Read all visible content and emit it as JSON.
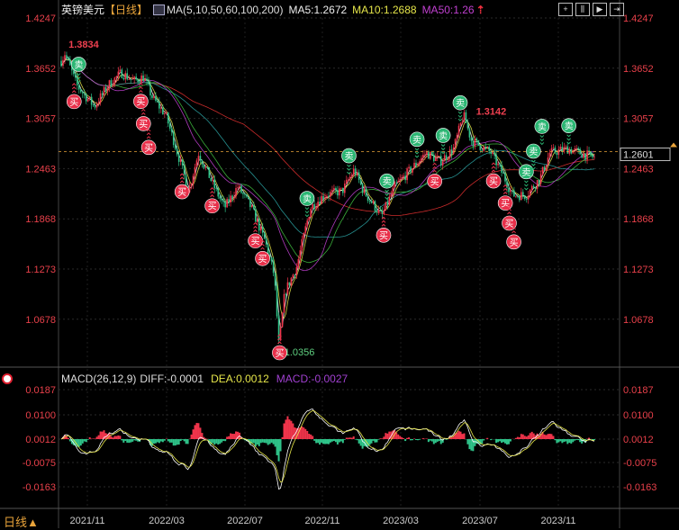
{
  "header": {
    "symbol": "英镑美元",
    "period": "【日线】",
    "ma_label": "MA(5,10,50,60,100,200)",
    "ma5": "MA5:1.2672",
    "ma10": "MA10:1.2688",
    "ma50": "MA50:1.26"
  },
  "toolbar": {
    "icons": [
      "crosshair-icon",
      "zoom-in-icon",
      "play-icon",
      "end-icon"
    ]
  },
  "macd_header": {
    "label": "MACD(26,12,9)",
    "diff": "DIFF:-0.0001",
    "dea": "DEA:0.0012",
    "macd": "MACD:-0.0027"
  },
  "footer": {
    "period_label": "日线▲"
  },
  "colors": {
    "up": "#f0344b",
    "down": "#2fc48a",
    "ma5": "#ffffff",
    "ma10": "#e6e64a",
    "ma50": "#c040d0",
    "ma60": "#40c040",
    "ma100": "#2aa0a0",
    "ma200": "#e03030",
    "axis": "#e8404a"
  },
  "chart_data": {
    "type": "candlestick",
    "price_axis": {
      "ticks": [
        "1.4247",
        "1.3652",
        "1.3057",
        "1.2463",
        "1.1868",
        "1.1273",
        "1.0678"
      ],
      "range": [
        1.0678,
        1.4247
      ]
    },
    "macd_axis": {
      "ticks": [
        "0.0187",
        "0.0100",
        "0.0012",
        "-0.0075",
        "-0.0163"
      ]
    },
    "date_ticks": [
      "2021/11",
      "2022/03",
      "2022/07",
      "2022/11",
      "2023/03",
      "2023/07",
      "2023/11"
    ],
    "current_price": "1.2601",
    "annotations": [
      {
        "text": "1.3834",
        "date": "2021-09-27",
        "price": 1.3834
      },
      {
        "text": "1.0356",
        "date": "2022-08-24",
        "price": 1.0356
      },
      {
        "text": "1.3142",
        "date": "2023-06-06",
        "price": 1.3142
      }
    ],
    "close_path": [
      [
        "2021-09-22",
        1.375
      ],
      [
        "2021-09-27",
        1.383
      ],
      [
        "2021-10-15",
        1.345
      ],
      [
        "2021-11-01",
        1.33
      ],
      [
        "2021-11-12",
        1.32
      ],
      [
        "2021-12-03",
        1.345
      ],
      [
        "2021-12-23",
        1.36
      ],
      [
        "2022-01-12",
        1.35
      ],
      [
        "2022-01-27",
        1.355
      ],
      [
        "2022-02-11",
        1.33
      ],
      [
        "2022-03-01",
        1.31
      ],
      [
        "2022-03-21",
        1.26
      ],
      [
        "2022-04-06",
        1.22
      ],
      [
        "2022-04-21",
        1.265
      ],
      [
        "2022-05-18",
        1.22
      ],
      [
        "2022-06-01",
        1.2
      ],
      [
        "2022-06-21",
        1.225
      ],
      [
        "2022-07-12",
        1.2
      ],
      [
        "2022-08-03",
        1.16
      ],
      [
        "2022-08-17",
        1.12
      ],
      [
        "2022-08-24",
        1.036
      ],
      [
        "2022-09-03",
        1.1
      ],
      [
        "2022-09-21",
        1.13
      ],
      [
        "2022-10-12",
        1.2
      ],
      [
        "2022-11-03",
        1.215
      ],
      [
        "2022-12-01",
        1.22
      ],
      [
        "2022-12-19",
        1.245
      ],
      [
        "2023-01-03",
        1.22
      ],
      [
        "2023-02-01",
        1.19
      ],
      [
        "2023-02-21",
        1.225
      ],
      [
        "2023-03-21",
        1.25
      ],
      [
        "2023-04-09",
        1.265
      ],
      [
        "2023-05-01",
        1.255
      ],
      [
        "2023-05-21",
        1.27
      ],
      [
        "2023-06-06",
        1.31
      ],
      [
        "2023-06-18",
        1.28
      ],
      [
        "2023-07-18",
        1.265
      ],
      [
        "2023-08-06",
        1.24
      ],
      [
        "2023-08-21",
        1.215
      ],
      [
        "2023-09-12",
        1.215
      ],
      [
        "2023-10-03",
        1.235
      ],
      [
        "2023-10-18",
        1.265
      ],
      [
        "2023-11-15",
        1.27
      ],
      [
        "2023-12-03",
        1.265
      ],
      [
        "2023-12-24",
        1.2601
      ]
    ],
    "signals": {
      "buy_label": "买",
      "sell_label": "卖",
      "buy": [
        "2021-10-11",
        "2022-01-23",
        "2022-01-27",
        "2022-02-05",
        "2022-03-26",
        "2022-05-12",
        "2022-07-18",
        "2022-07-29",
        "2022-08-25",
        "2023-02-04",
        "2023-04-22",
        "2023-07-22",
        "2023-08-10",
        "2023-08-16",
        "2023-08-23"
      ],
      "sell": [
        "2021-10-18",
        "2022-10-07",
        "2022-12-11",
        "2023-02-09",
        "2023-03-25",
        "2023-05-05",
        "2023-06-01",
        "2023-09-12",
        "2023-09-23",
        "2023-10-06",
        "2023-11-17"
      ]
    }
  }
}
